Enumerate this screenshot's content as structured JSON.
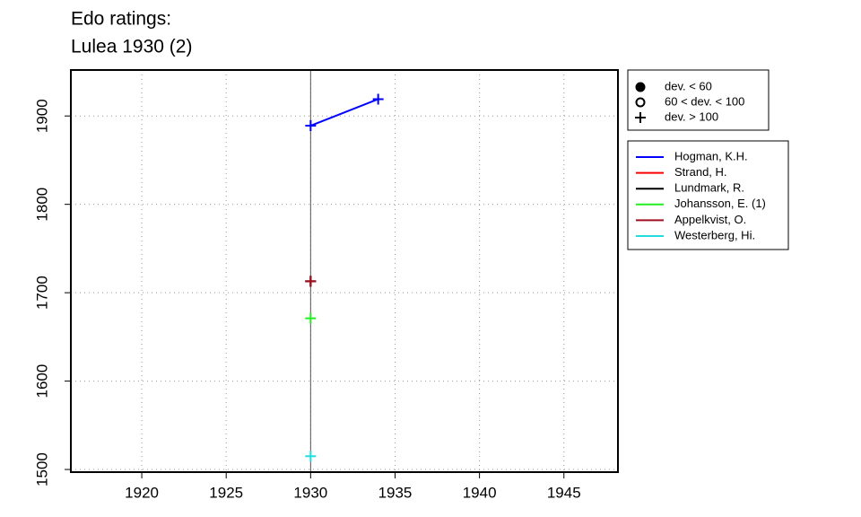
{
  "chart_data": {
    "type": "line",
    "title": "Edo ratings:",
    "subtitle": "Lulea 1930 (2)",
    "xlim": [
      1915.8,
      1948.2
    ],
    "ylim": [
      1497,
      1952
    ],
    "xticks": [
      1920,
      1925,
      1930,
      1935,
      1940,
      1945
    ],
    "yticks": [
      1500,
      1600,
      1700,
      1800,
      1900
    ],
    "grid": true,
    "reference_x": 1930,
    "marker_legend": [
      {
        "label": "dev. < 60",
        "marker": "filled-circle"
      },
      {
        "label": "60 < dev. < 100",
        "marker": "open-circle"
      },
      {
        "label": "dev. > 100",
        "marker": "plus"
      }
    ],
    "series": [
      {
        "name": "Hogman, K.H.",
        "color": "#0000ff",
        "x": [
          1930,
          1934
        ],
        "values": [
          1889,
          1919
        ],
        "marker": "plus"
      },
      {
        "name": "Strand, H.",
        "color": "#ff0000",
        "x": [
          1930
        ],
        "values": [
          1713
        ],
        "marker": "plus"
      },
      {
        "name": "Lundmark, R.",
        "color": "#000000",
        "x": [
          1930
        ],
        "values": [
          1713
        ],
        "marker": "plus"
      },
      {
        "name": "Johansson, E. (1)",
        "color": "#22ee22",
        "x": [
          1930
        ],
        "values": [
          1671
        ],
        "marker": "plus"
      },
      {
        "name": "Appelkvist, O.",
        "color": "#a01020",
        "x": [
          1930
        ],
        "values": [
          1713
        ],
        "marker": "plus"
      },
      {
        "name": "Westerberg, Hi.",
        "color": "#22dddd",
        "x": [
          1930
        ],
        "values": [
          1515
        ],
        "marker": "plus"
      }
    ]
  }
}
